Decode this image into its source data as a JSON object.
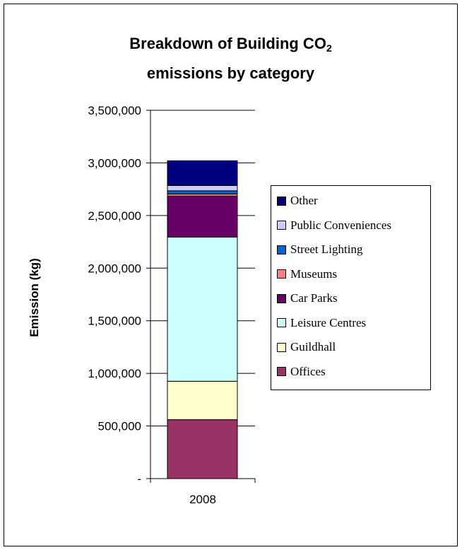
{
  "chart_data": {
    "type": "bar",
    "stacked": true,
    "title_line1": "Breakdown of Building CO",
    "title_sub": "2",
    "title_line2": "emissions by category",
    "xlabel": "",
    "ylabel": "Emission (kg)",
    "categories": [
      "2008"
    ],
    "ylim": [
      0,
      3500000
    ],
    "yticks": [
      0,
      500000,
      1000000,
      1500000,
      2000000,
      2500000,
      3000000,
      3500000
    ],
    "ytick_labels": [
      "-",
      "500,000",
      "1,000,000",
      "1,500,000",
      "2,000,000",
      "2,500,000",
      "3,000,000",
      "3,500,000"
    ],
    "grid": true,
    "legend_position": "right",
    "series": [
      {
        "name": "Offices",
        "values": [
          560000
        ],
        "color": "#993366"
      },
      {
        "name": "Guildhall",
        "values": [
          365000
        ],
        "color": "#ffffcc"
      },
      {
        "name": "Leisure Centres",
        "values": [
          1370000
        ],
        "color": "#ccffff"
      },
      {
        "name": "Car Parks",
        "values": [
          390000
        ],
        "color": "#660066"
      },
      {
        "name": "Museums",
        "values": [
          20000
        ],
        "color": "#ff8080"
      },
      {
        "name": "Street Lighting",
        "values": [
          30000
        ],
        "color": "#0066cc"
      },
      {
        "name": "Public Conveniences",
        "values": [
          50000
        ],
        "color": "#ccccff"
      },
      {
        "name": "Other",
        "values": [
          235000
        ],
        "color": "#000080"
      }
    ]
  }
}
